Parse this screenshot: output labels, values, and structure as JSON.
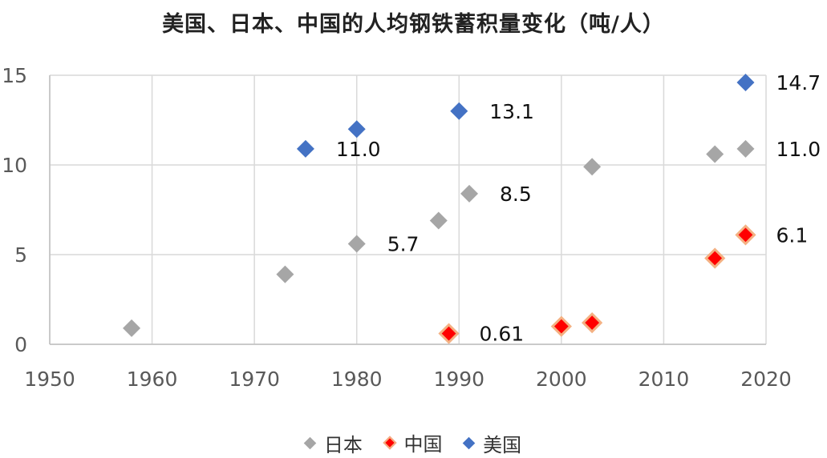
{
  "chart_data": {
    "type": "scatter",
    "title": "美国、日本、中国的人均钢铁蓄积量变化（吨/人）",
    "xlabel": "",
    "ylabel": "",
    "xlim": [
      1950,
      2020
    ],
    "ylim": [
      0,
      15
    ],
    "x_ticks": [
      "1950",
      "1960",
      "1970",
      "1980",
      "1990",
      "2000",
      "2010",
      "2020"
    ],
    "y_ticks": [
      "0",
      "5",
      "10",
      "15"
    ],
    "grid": true,
    "legend_position": "bottom",
    "series": [
      {
        "name": "日本",
        "color": "#a6a6a6",
        "points": [
          {
            "x": 1958,
            "y": 0.9
          },
          {
            "x": 1973,
            "y": 3.9
          },
          {
            "x": 1980,
            "y": 5.6,
            "label": "5.7"
          },
          {
            "x": 1988,
            "y": 6.9
          },
          {
            "x": 1991,
            "y": 8.4,
            "label": "8.5"
          },
          {
            "x": 2003,
            "y": 9.9
          },
          {
            "x": 2015,
            "y": 10.6
          },
          {
            "x": 2018,
            "y": 10.9,
            "label": "11.0"
          }
        ]
      },
      {
        "name": "中国",
        "color": "#ff0000",
        "stroke": "#f4b183",
        "points": [
          {
            "x": 1989,
            "y": 0.6,
            "label": "0.61"
          },
          {
            "x": 2000,
            "y": 1.0
          },
          {
            "x": 2003,
            "y": 1.2
          },
          {
            "x": 2015,
            "y": 4.8
          },
          {
            "x": 2018,
            "y": 6.1,
            "label": "6.1"
          }
        ]
      },
      {
        "name": "美国",
        "color": "#4472c4",
        "points": [
          {
            "x": 1975,
            "y": 10.9,
            "label": "11.0"
          },
          {
            "x": 1980,
            "y": 12.0
          },
          {
            "x": 1990,
            "y": 13.0,
            "label": "13.1"
          },
          {
            "x": 2018,
            "y": 14.6,
            "label": "14.7"
          }
        ]
      }
    ]
  }
}
